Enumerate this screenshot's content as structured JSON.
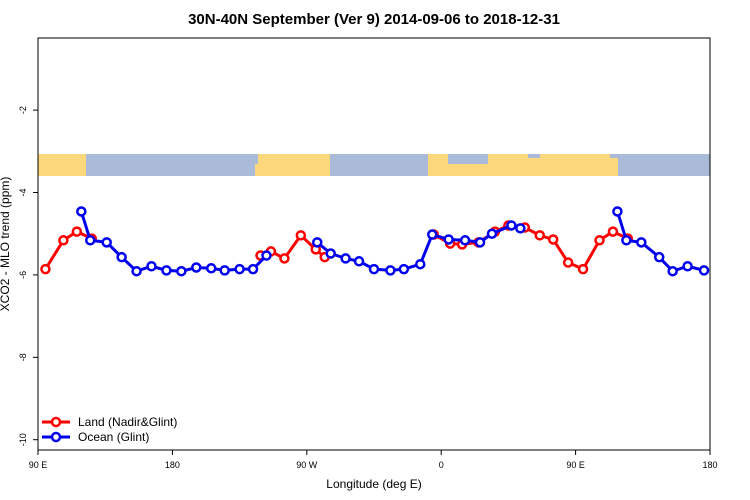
{
  "chart_data": {
    "type": "line",
    "title": "30N-40N September (Ver 9)   2014-09-06 to 2018-12-31",
    "x_label": "Longitude (deg E)",
    "y_label": "XCO2 - MLO trend (ppm)",
    "xlim": [
      90,
      540
    ],
    "ylim": [
      -10.25,
      -0.25
    ],
    "xticks": [
      {
        "value": 90,
        "label": "90 E"
      },
      {
        "value": 180,
        "label": "180"
      },
      {
        "value": 270,
        "label": "90 W"
      },
      {
        "value": 360,
        "label": "0"
      },
      {
        "value": 450,
        "label": "90 E"
      },
      {
        "value": 540,
        "label": "180"
      }
    ],
    "yticks": [
      -2,
      -4,
      -6,
      -8,
      -10
    ],
    "legend": "bottom-left",
    "series": [
      {
        "name": "Land (Nadir&Glint)",
        "color": "#ff0000",
        "x": [
          95,
          107,
          116,
          126,
          null,
          239,
          246,
          255,
          266,
          276,
          282,
          null,
          355,
          366,
          374,
          385,
          396,
          405,
          416,
          426,
          435,
          445,
          455,
          466,
          475,
          485
        ],
        "values": [
          -5.86,
          -5.16,
          -4.95,
          -5.12,
          null,
          -5.53,
          -5.43,
          -5.6,
          -5.04,
          -5.38,
          -5.57,
          null,
          -5.02,
          -5.24,
          -5.26,
          -5.21,
          -4.95,
          -4.8,
          -4.85,
          -5.04,
          -5.14,
          -5.7,
          -5.86,
          -5.16,
          -4.95,
          -5.12
        ]
      },
      {
        "name": "Ocean (Glint)",
        "color": "#0000ee",
        "x": [
          119,
          125,
          136,
          146,
          156,
          166,
          176,
          186,
          196,
          206,
          215,
          225,
          234,
          243,
          null,
          277,
          286,
          296,
          305,
          315,
          326,
          335,
          346,
          354,
          365,
          376,
          386,
          394,
          407,
          413,
          null,
          478,
          484,
          494,
          506,
          515,
          525,
          536
        ],
        "values": [
          -4.46,
          -5.16,
          -5.21,
          -5.57,
          -5.91,
          -5.79,
          -5.89,
          -5.91,
          -5.82,
          -5.84,
          -5.89,
          -5.86,
          -5.86,
          -5.53,
          null,
          -5.21,
          -5.48,
          -5.6,
          -5.67,
          -5.86,
          -5.89,
          -5.86,
          -5.74,
          -5.02,
          -5.14,
          -5.16,
          -5.21,
          -5.0,
          -4.8,
          -4.87,
          null,
          -4.46,
          -5.16,
          -5.21,
          -5.57,
          -5.91,
          -5.79,
          -5.89
        ]
      }
    ]
  }
}
